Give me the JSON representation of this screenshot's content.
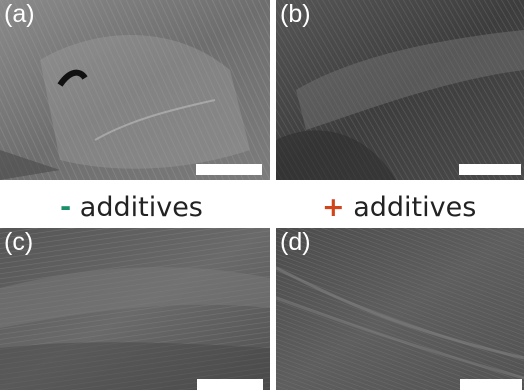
{
  "panels": [
    {
      "label": "(a)"
    },
    {
      "label": "(b)"
    },
    {
      "label": "(c)"
    },
    {
      "label": "(d)"
    }
  ],
  "captions": {
    "minus": {
      "sign": "-",
      "text": " additives",
      "sign_color": "#1a8f6b"
    },
    "plus": {
      "sign": "+",
      "text": " additives",
      "sign_color": "#d1451b"
    }
  },
  "colors": {
    "background": "#ffffff",
    "label_text": "#ffffff",
    "scale_bar": "#ffffff"
  }
}
